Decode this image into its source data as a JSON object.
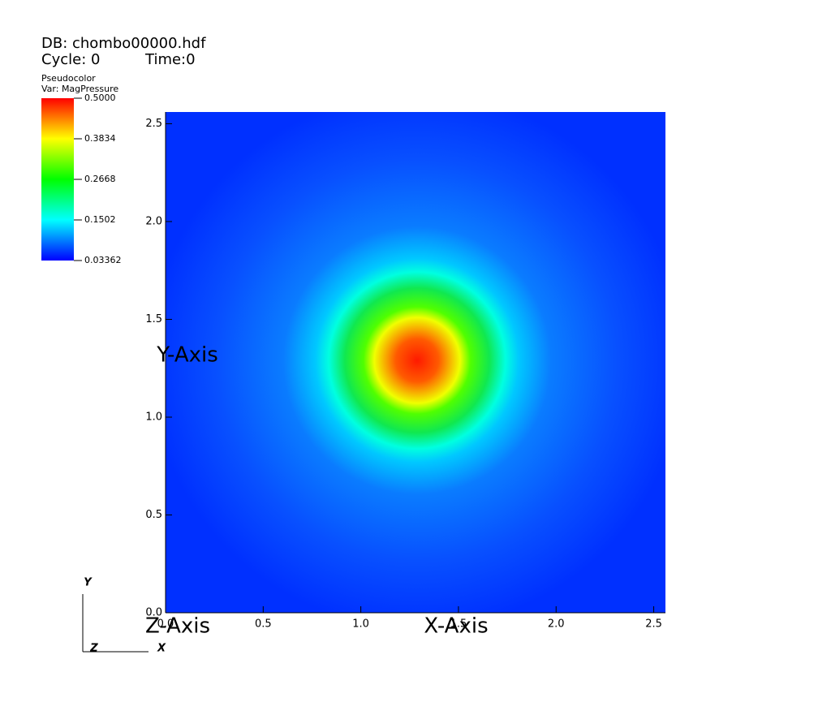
{
  "chart_data": {
    "type": "pseudocolor",
    "db": "DB: chombo00000.hdf",
    "cycle": "Cycle: 0",
    "time": "Time:0",
    "legend_title": "Pseudocolor",
    "variable": "Var: MagPressure",
    "x_label": "X-Axis",
    "y_label": "Y-Axis",
    "z_label": "Z-Axis",
    "xlim": [
      0,
      2.56
    ],
    "ylim": [
      0,
      2.56
    ],
    "xticks": [
      {
        "value": 0,
        "label": "0.0"
      },
      0.5,
      {
        "value": 1,
        "label": "1.0"
      },
      1.5,
      {
        "value": 2,
        "label": "2.0"
      },
      2.5
    ],
    "yticks": [
      {
        "value": 0,
        "label": "0.0"
      },
      0.5,
      {
        "value": 1,
        "label": "1.0"
      },
      1.5,
      {
        "value": 2,
        "label": "2.0"
      },
      2.5
    ],
    "colorbar": {
      "lim": [
        0.03362,
        0.5
      ],
      "ticks": [
        {
          "value": 0.5,
          "label": "0.5000"
        },
        0.3834,
        0.2668,
        0.1502,
        0.03362
      ]
    },
    "triad": [
      "X",
      "Y",
      "Z"
    ]
  }
}
